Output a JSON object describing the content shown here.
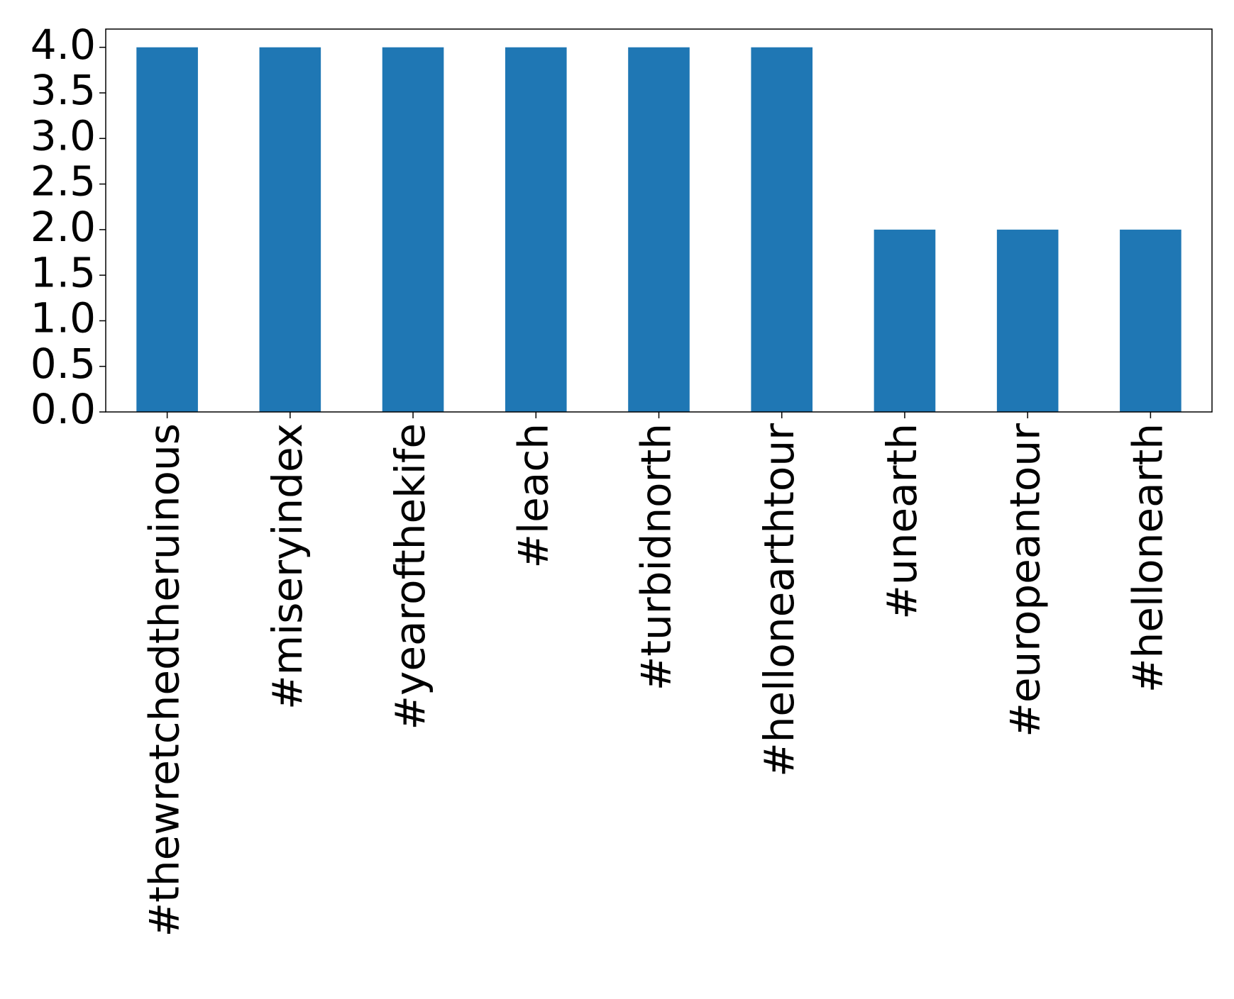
{
  "chart_data": {
    "type": "bar",
    "categories": [
      "#thewretchedtheruinous",
      "#miseryindex",
      "#yearofthekife",
      "#leach",
      "#turbidnorth",
      "#hellonearthtour",
      "#unearth",
      "#europeantour",
      "#hellonearth"
    ],
    "values": [
      4,
      4,
      4,
      4,
      4,
      4,
      2,
      2,
      2
    ],
    "color": "#1f77b4",
    "ylim": [
      0,
      4.2
    ],
    "yticks": [
      {
        "value": 0,
        "label": "0.0"
      },
      {
        "value": 0.5,
        "label": "0.5"
      },
      {
        "value": 1,
        "label": "1.0"
      },
      {
        "value": 1.5,
        "label": "1.5"
      },
      {
        "value": 2,
        "label": "2.0"
      },
      {
        "value": 2.5,
        "label": "2.5"
      },
      {
        "value": 3,
        "label": "3.0"
      },
      {
        "value": 3.5,
        "label": "3.5"
      },
      {
        "value": 4,
        "label": "4.0"
      }
    ],
    "grid": false
  }
}
